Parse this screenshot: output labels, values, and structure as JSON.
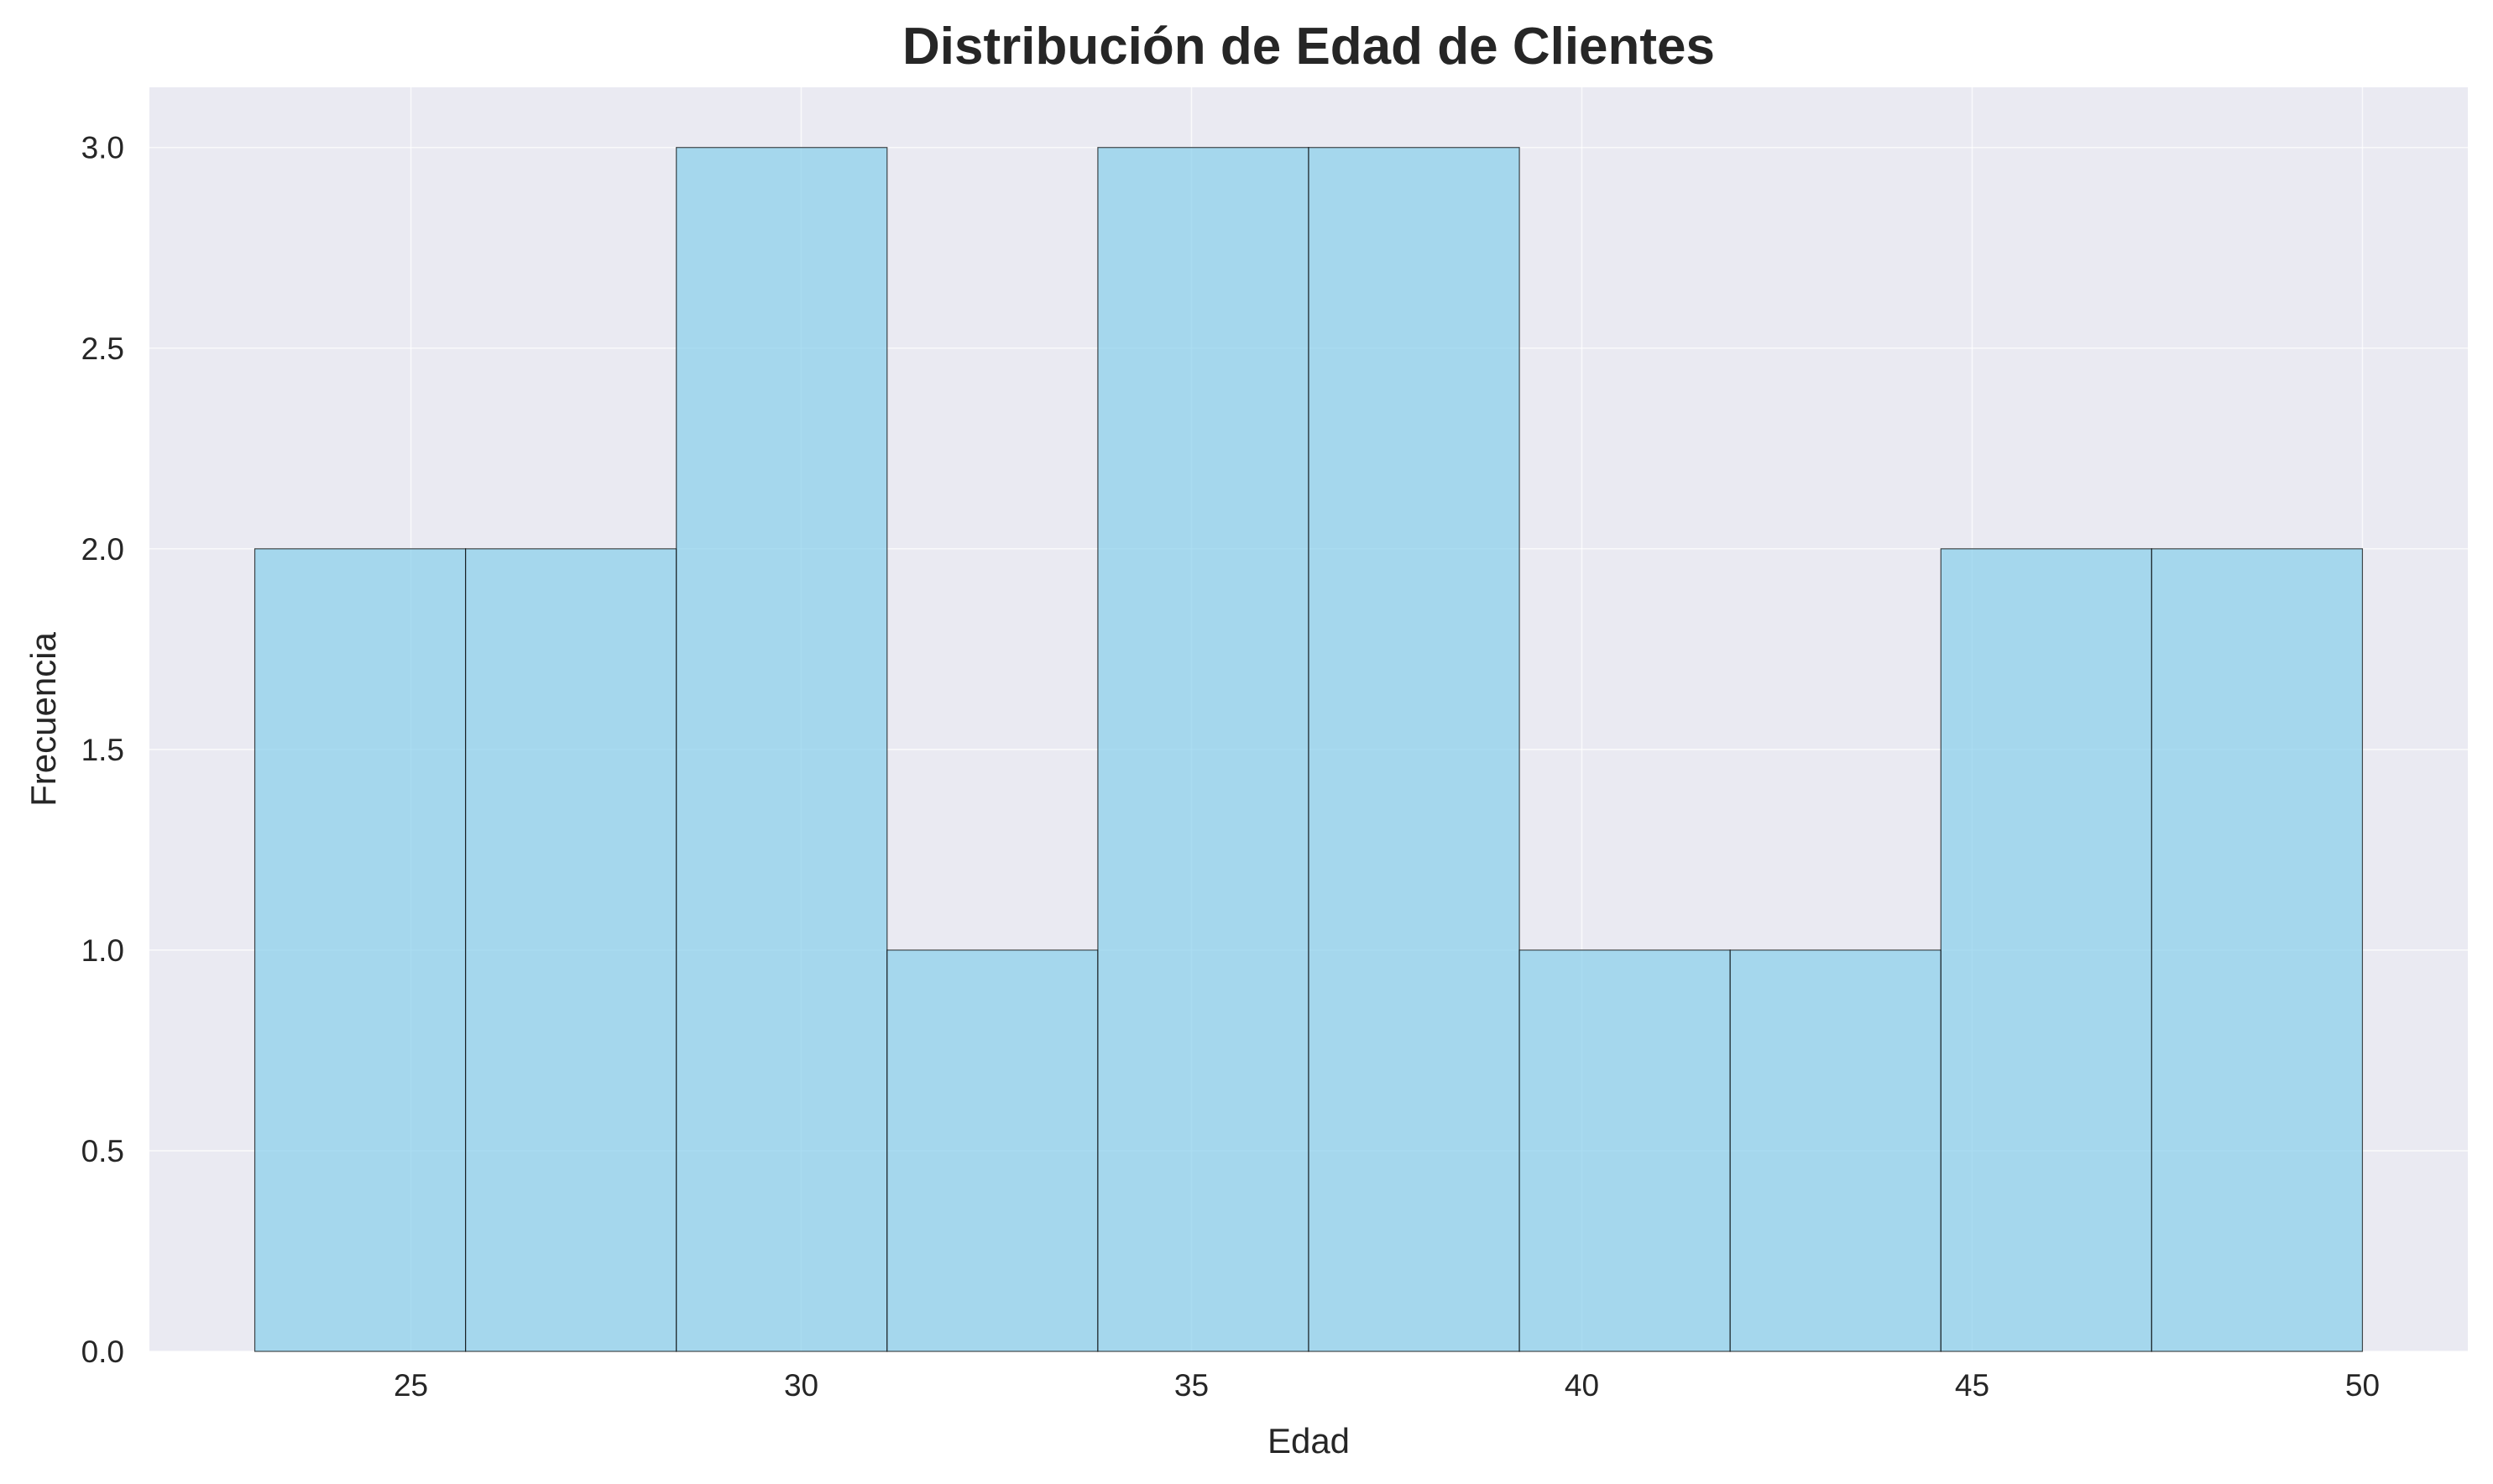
{
  "chart_data": {
    "type": "bar",
    "title": "Distribución de Edad de Clientes",
    "xlabel": "Edad",
    "ylabel": "Frecuencia",
    "bin_edges": [
      23.0,
      25.7,
      28.4,
      31.1,
      33.8,
      36.5,
      39.2,
      41.9,
      44.6,
      47.3,
      50.0
    ],
    "values": [
      2,
      2,
      3,
      1,
      3,
      3,
      1,
      1,
      2,
      2
    ],
    "xlim": [
      21.65,
      51.35
    ],
    "ylim": [
      0,
      3.15
    ],
    "xticks": [
      25,
      30,
      35,
      40,
      45,
      50
    ],
    "xtick_labels": [
      "25",
      "30",
      "35",
      "40",
      "45",
      "50"
    ],
    "yticks": [
      0.0,
      0.5,
      1.0,
      1.5,
      2.0,
      2.5,
      3.0
    ],
    "ytick_labels": [
      "0.0",
      "0.5",
      "1.0",
      "1.5",
      "2.0",
      "2.5",
      "3.0"
    ],
    "grid": true,
    "legend": false,
    "colors": {
      "bar_fill": "#87ceeb",
      "bar_edge": "#000000",
      "plot_background": "#eaeaf2",
      "grid": "#ffffff",
      "text": "#262626"
    }
  }
}
